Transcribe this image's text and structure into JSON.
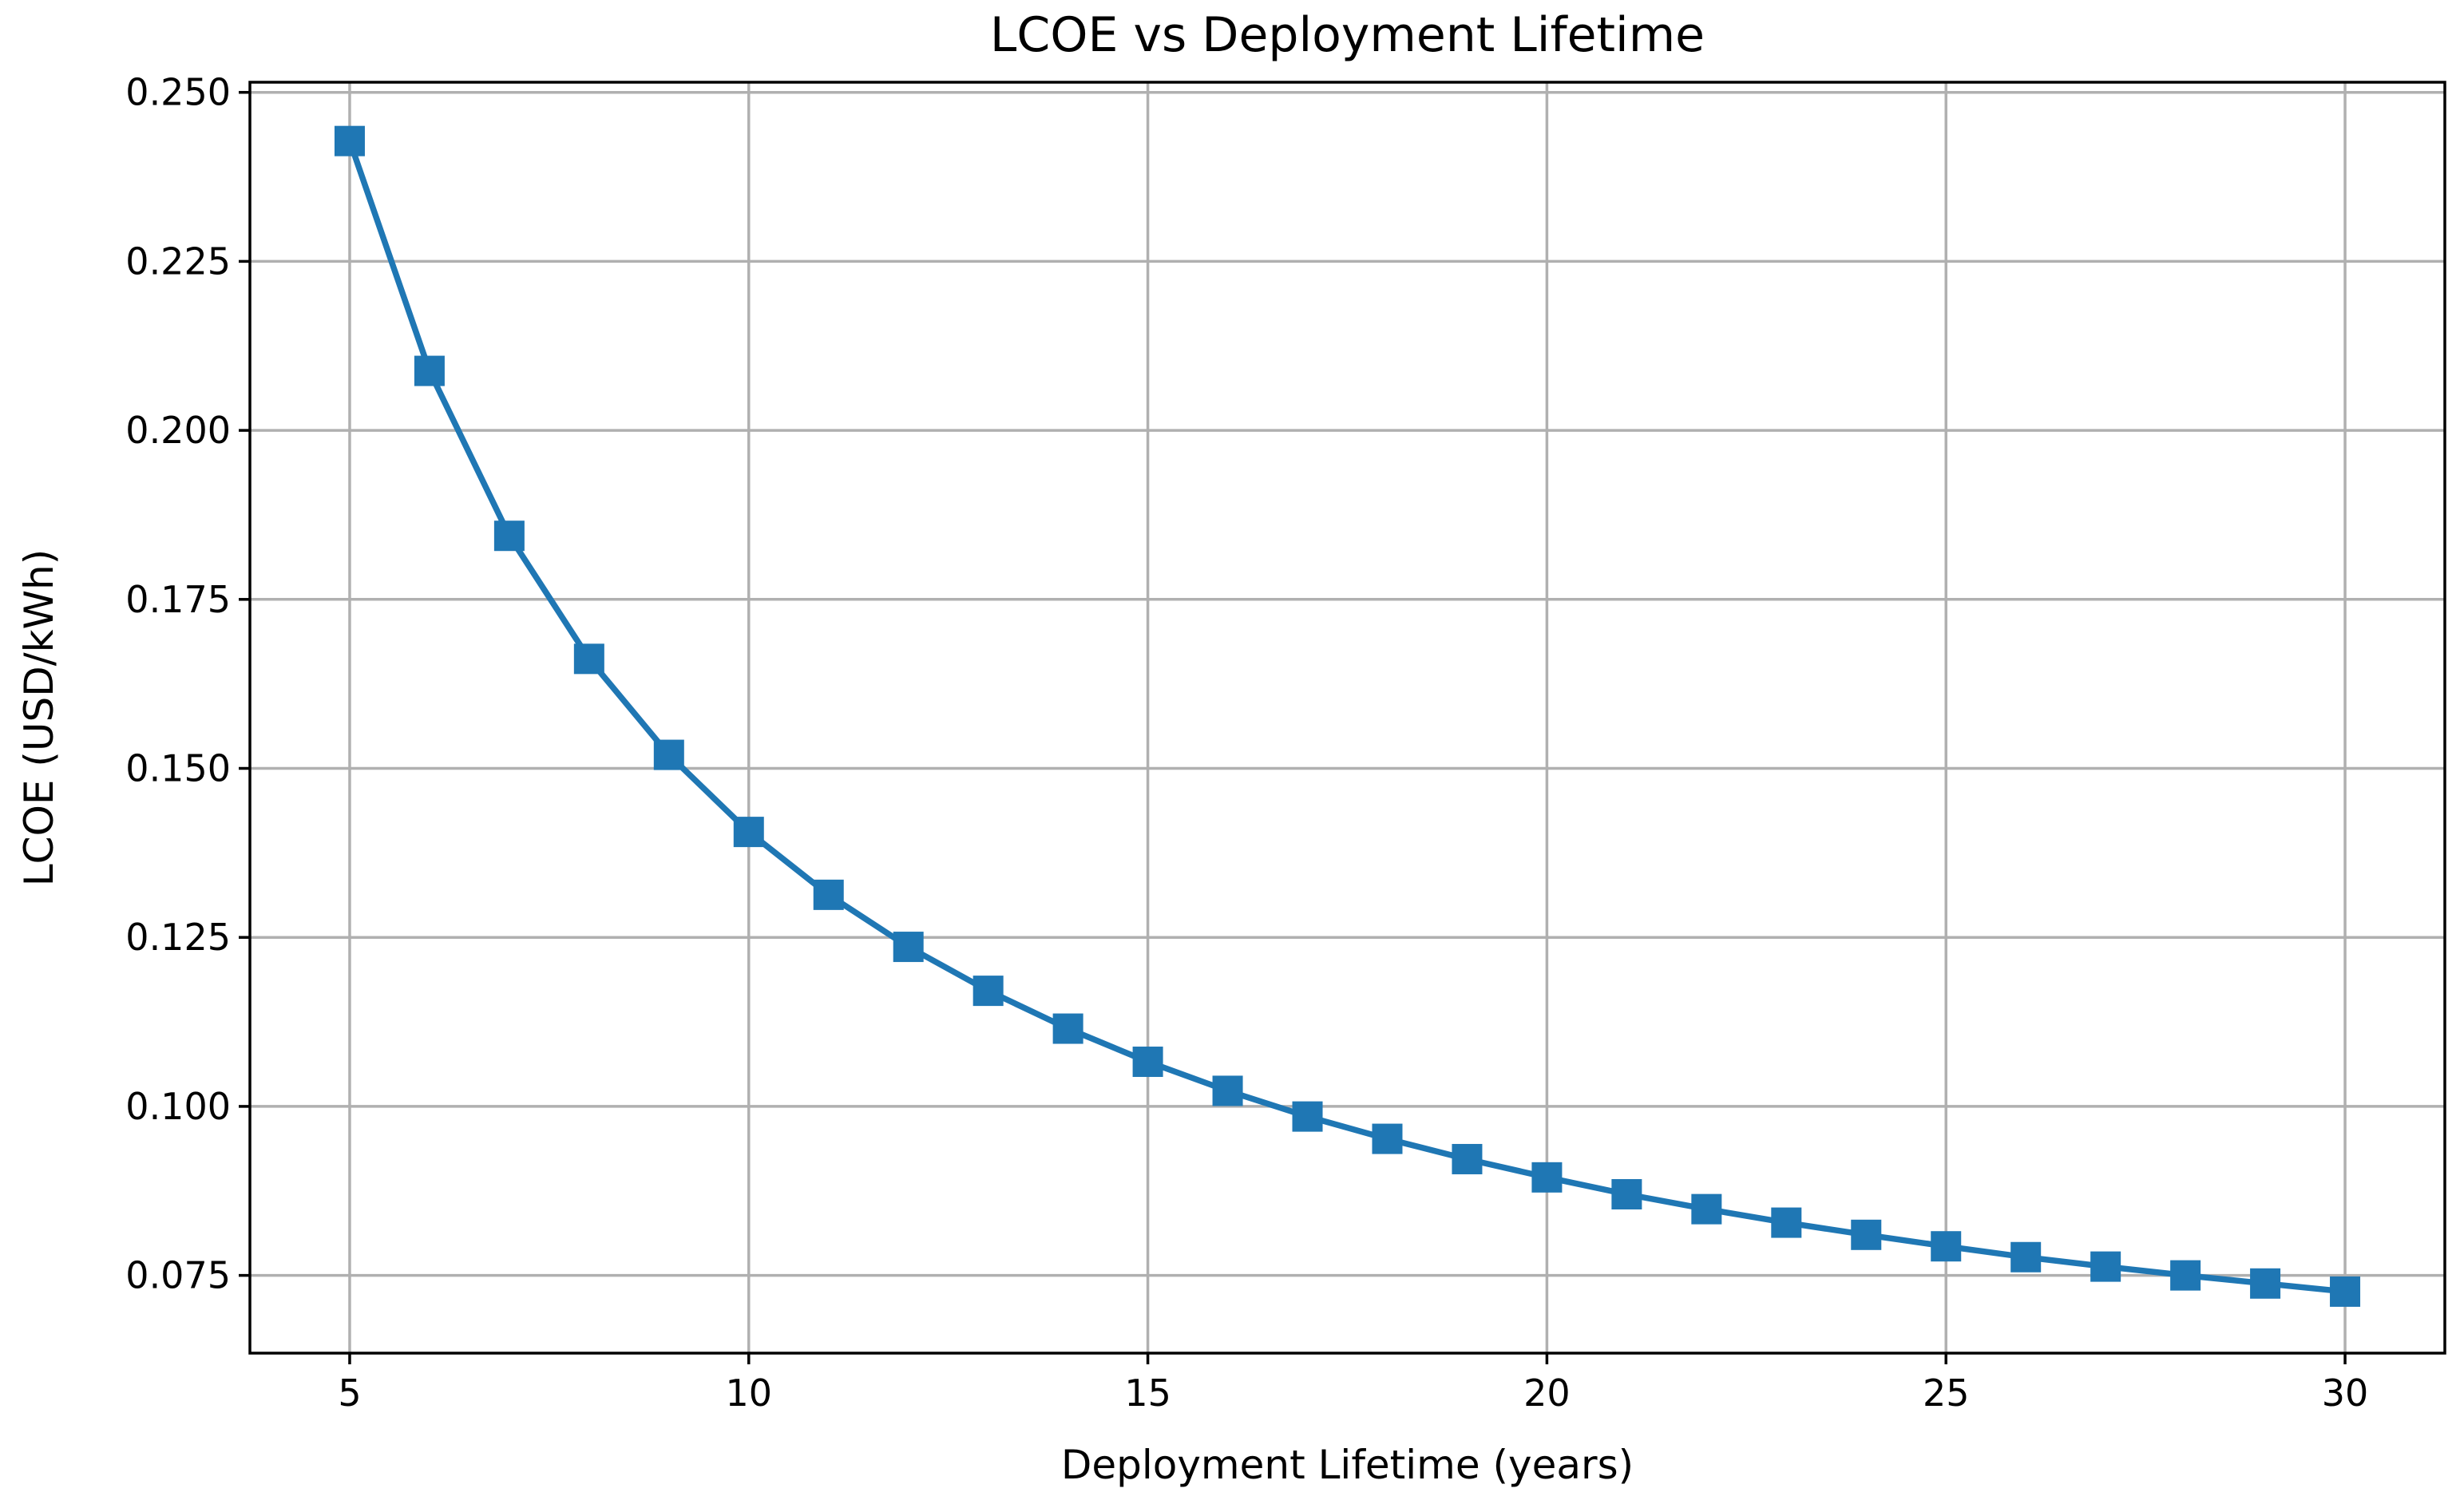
{
  "chart_data": {
    "type": "line",
    "title": "LCOE vs Deployment Lifetime",
    "xlabel": "Deployment Lifetime (years)",
    "ylabel": "LCOE (USD/kWh)",
    "xlim": [
      3.75,
      31.25
    ],
    "ylim": [
      0.0635,
      0.2515
    ],
    "xticks": [
      5,
      10,
      15,
      20,
      25,
      30
    ],
    "xtick_labels": [
      "5",
      "10",
      "15",
      "20",
      "25",
      "30"
    ],
    "yticks": [
      0.075,
      0.1,
      0.125,
      0.15,
      0.175,
      0.2,
      0.225,
      0.25
    ],
    "ytick_labels": [
      "0.075",
      "0.100",
      "0.125",
      "0.150",
      "0.175",
      "0.200",
      "0.225",
      "0.250"
    ],
    "grid": true,
    "series": [
      {
        "name": "LCOE",
        "color": "#1f77b4",
        "marker": "square",
        "x": [
          5,
          6,
          7,
          8,
          9,
          10,
          11,
          12,
          13,
          14,
          15,
          16,
          17,
          18,
          19,
          20,
          21,
          22,
          23,
          24,
          25,
          26,
          27,
          28,
          29,
          30
        ],
        "values": [
          0.2428,
          0.2088,
          0.1844,
          0.1662,
          0.152,
          0.1406,
          0.1313,
          0.1236,
          0.1171,
          0.1115,
          0.1066,
          0.1023,
          0.0985,
          0.0952,
          0.0922,
          0.0895,
          0.087,
          0.0848,
          0.0828,
          0.081,
          0.0793,
          0.0777,
          0.0763,
          0.075,
          0.0738,
          0.0726
        ]
      }
    ]
  }
}
